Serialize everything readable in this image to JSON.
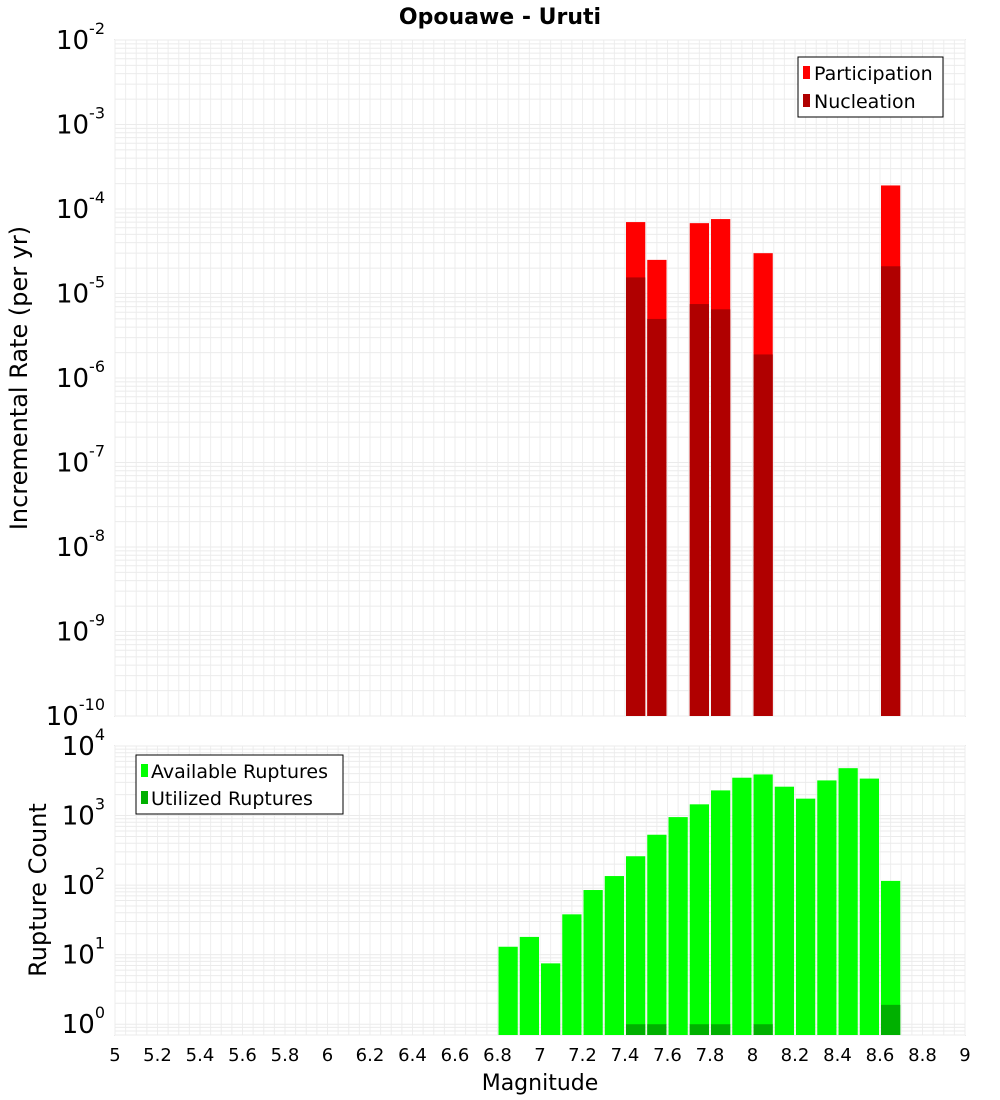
{
  "chart_data": [
    {
      "type": "bar",
      "title": "Opouawe - Uruti",
      "xlabel": "",
      "ylabel": "Incremental Rate (per yr)",
      "yscale": "log",
      "ylim": [
        1e-10,
        0.01
      ],
      "xlim": [
        5,
        9
      ],
      "y_ticks": [
        {
          "base": "10",
          "exp": "-10",
          "value": 1e-10
        },
        {
          "base": "10",
          "exp": "-9",
          "value": 1e-09
        },
        {
          "base": "10",
          "exp": "-8",
          "value": 1e-08
        },
        {
          "base": "10",
          "exp": "-7",
          "value": 1e-07
        },
        {
          "base": "10",
          "exp": "-6",
          "value": 1e-06
        },
        {
          "base": "10",
          "exp": "-5",
          "value": 1e-05
        },
        {
          "base": "10",
          "exp": "-4",
          "value": 0.0001
        },
        {
          "base": "10",
          "exp": "-3",
          "value": 0.001
        },
        {
          "base": "10",
          "exp": "-2",
          "value": 0.01
        }
      ],
      "grid": true,
      "legend_position": "top-right",
      "series": [
        {
          "name": "Participation",
          "color": "#ff0000",
          "points": [
            {
              "x": 7.45,
              "y": 7e-05
            },
            {
              "x": 7.55,
              "y": 2.5e-05
            },
            {
              "x": 7.75,
              "y": 6.8e-05
            },
            {
              "x": 7.85,
              "y": 7.6e-05
            },
            {
              "x": 8.05,
              "y": 3e-05
            },
            {
              "x": 8.65,
              "y": 0.00019
            }
          ]
        },
        {
          "name": "Nucleation",
          "color": "#b00000",
          "points": [
            {
              "x": 7.45,
              "y": 1.55e-05
            },
            {
              "x": 7.55,
              "y": 5e-06
            },
            {
              "x": 7.75,
              "y": 7.5e-06
            },
            {
              "x": 7.85,
              "y": 6.5e-06
            },
            {
              "x": 8.05,
              "y": 1.9e-06
            },
            {
              "x": 8.65,
              "y": 2.1e-05
            }
          ]
        }
      ]
    },
    {
      "type": "bar",
      "title": "",
      "xlabel": "Magnitude",
      "ylabel": "Rupture Count",
      "yscale": "log",
      "ylim": [
        0.7,
        10000.0
      ],
      "xlim": [
        5,
        9
      ],
      "x_ticks": [
        "5",
        "5.2",
        "5.4",
        "5.6",
        "5.8",
        "6",
        "6.2",
        "6.4",
        "6.6",
        "6.8",
        "7",
        "7.2",
        "7.4",
        "7.6",
        "7.8",
        "8",
        "8.2",
        "8.4",
        "8.6",
        "8.8",
        "9"
      ],
      "y_ticks": [
        {
          "base": "10",
          "exp": "0",
          "value": 1
        },
        {
          "base": "10",
          "exp": "1",
          "value": 10
        },
        {
          "base": "10",
          "exp": "2",
          "value": 100
        },
        {
          "base": "10",
          "exp": "3",
          "value": 1000
        },
        {
          "base": "10",
          "exp": "4",
          "value": 10000
        }
      ],
      "grid": true,
      "legend_position": "top-left",
      "series": [
        {
          "name": "Available Ruptures",
          "color": "#00ff00",
          "points": [
            {
              "x": 6.85,
              "y": 13
            },
            {
              "x": 6.95,
              "y": 18
            },
            {
              "x": 7.05,
              "y": 7.5
            },
            {
              "x": 7.15,
              "y": 38
            },
            {
              "x": 7.25,
              "y": 85
            },
            {
              "x": 7.35,
              "y": 135
            },
            {
              "x": 7.45,
              "y": 260
            },
            {
              "x": 7.55,
              "y": 530
            },
            {
              "x": 7.65,
              "y": 950
            },
            {
              "x": 7.75,
              "y": 1450
            },
            {
              "x": 7.85,
              "y": 2300
            },
            {
              "x": 7.95,
              "y": 3500
            },
            {
              "x": 8.05,
              "y": 3900
            },
            {
              "x": 8.15,
              "y": 2600
            },
            {
              "x": 8.25,
              "y": 1750
            },
            {
              "x": 8.35,
              "y": 3200
            },
            {
              "x": 8.45,
              "y": 4800
            },
            {
              "x": 8.55,
              "y": 3400
            },
            {
              "x": 8.65,
              "y": 115
            }
          ]
        },
        {
          "name": "Utilized Ruptures",
          "color": "#00b000",
          "points": [
            {
              "x": 7.45,
              "y": 1
            },
            {
              "x": 7.55,
              "y": 1
            },
            {
              "x": 7.75,
              "y": 1
            },
            {
              "x": 7.85,
              "y": 1
            },
            {
              "x": 8.05,
              "y": 1
            },
            {
              "x": 8.65,
              "y": 1.9
            }
          ]
        }
      ]
    }
  ]
}
